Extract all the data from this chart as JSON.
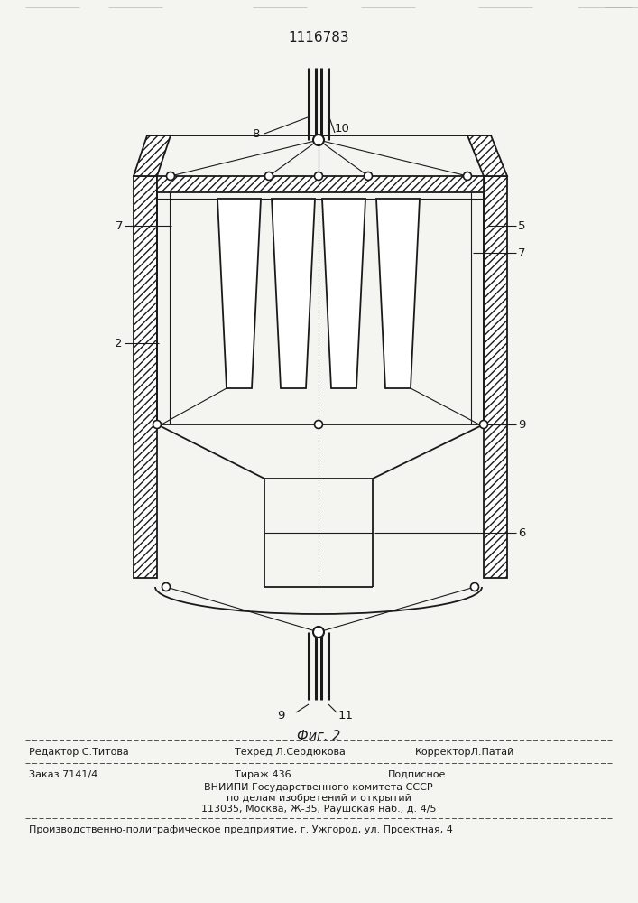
{
  "title": "1116783",
  "fig_label": "Фиг. 2",
  "bg_color": "#f4f4f0",
  "line_color": "#1a1a1a",
  "footer_line1": "Редактор С.Титова",
  "footer_tehred": "Техред Л.Сердюкова",
  "footer_korr": "КорректорЛ.Патай",
  "footer_zakaz": "Заказ 7141/4",
  "footer_tirazh": "Тираж 436",
  "footer_podp": "Подписное",
  "footer_vniip1": "ВНИИПИ Государственного комитета СССР",
  "footer_vniip2": "по делам изобретений и открытий",
  "footer_addr": "113035, Москва, Ж-35, Раушская наб., д. 4/5",
  "footer_prod": "Производственно-полиграфическое предприятие, г. Ужгород, ул. Проектная, 4"
}
